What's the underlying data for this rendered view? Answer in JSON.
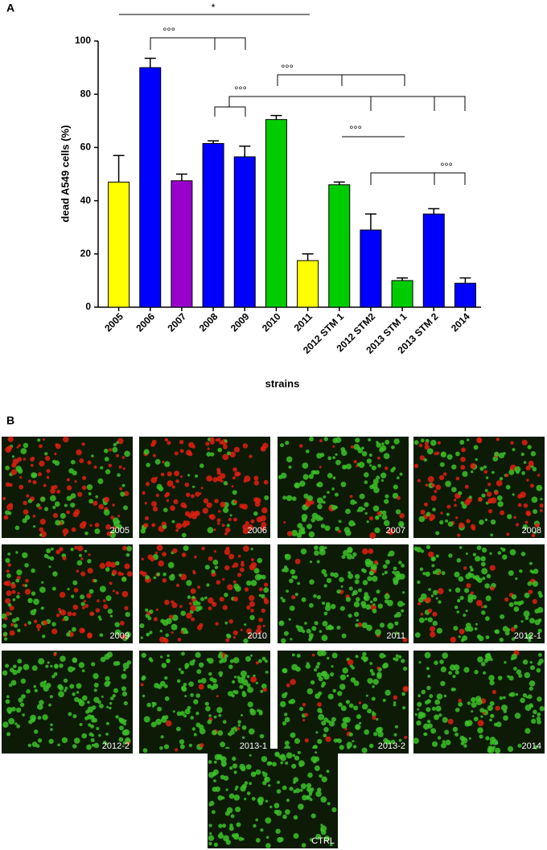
{
  "panel_labels": [
    "A",
    "B"
  ],
  "chart_data": {
    "type": "bar",
    "categories": [
      "2005",
      "2006",
      "2007",
      "2008",
      "2009",
      "2010",
      "2011",
      "2012 STM 1",
      "2012 STM2",
      "2013 STM 1",
      "2013 STM 2",
      "2014"
    ],
    "values": [
      47,
      90,
      47.5,
      61.5,
      56.5,
      70.5,
      17.5,
      46,
      29,
      10,
      35,
      9
    ],
    "errors": [
      10,
      3.5,
      2.5,
      1,
      4,
      1.5,
      2.5,
      1,
      6,
      1,
      2,
      2
    ],
    "colors": [
      "#ffff00",
      "#0000ff",
      "#9900cc",
      "#0000ff",
      "#0000ff",
      "#00cc00",
      "#ffff00",
      "#00cc00",
      "#0000ff",
      "#00cc00",
      "#0000ff",
      "#0000ff"
    ],
    "y_label": "dead A549 cells (%)",
    "x_label": "strains",
    "ylim": [
      0,
      100
    ],
    "yticks": [
      0,
      20,
      40,
      60,
      80,
      100
    ],
    "annotations": [
      "*",
      "°°°",
      "°°°",
      "°°°",
      "°°°",
      "°°°"
    ]
  },
  "images": [
    "2005",
    "2006",
    "2007",
    "2008",
    "2009",
    "2010",
    "2011",
    "2012-1",
    "2012-2",
    "2013-1",
    "2013-2",
    "2014",
    "CTRL"
  ]
}
